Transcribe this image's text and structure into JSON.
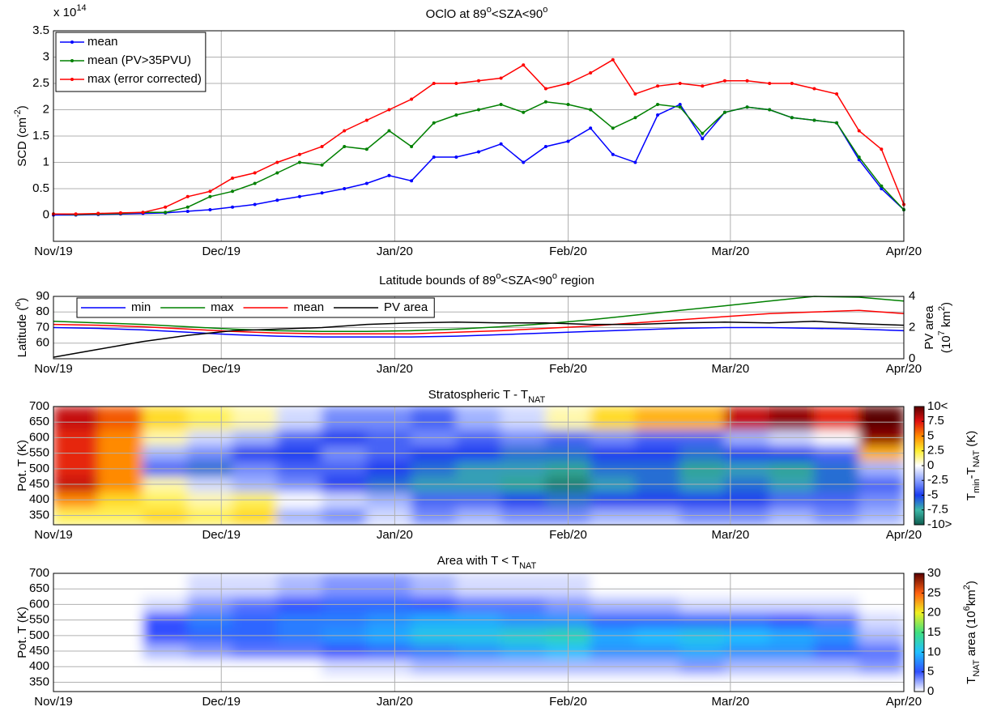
{
  "chart_data": [
    {
      "type": "line",
      "title": [
        "OClO at 89",
        {
          "sup": "o"
        },
        "<SZA<90",
        {
          "sup": "o"
        }
      ],
      "y_multiplier": [
        "x 10",
        {
          "sup": "14"
        }
      ],
      "ylabel": [
        "SCD (cm",
        {
          "sup": "-2"
        },
        ")"
      ],
      "x": [
        0,
        4,
        8,
        12,
        16,
        20,
        24,
        28,
        32,
        36,
        40,
        44,
        48,
        52,
        56,
        60,
        64,
        68,
        72,
        76,
        80,
        84,
        88,
        92,
        96,
        100,
        104,
        108,
        112,
        116,
        120,
        124,
        128,
        132,
        136,
        140,
        144,
        148,
        152
      ],
      "xlim": [
        0,
        152
      ],
      "xticks": [
        {
          "value": 0,
          "label": "Nov/19"
        },
        {
          "value": 30,
          "label": "Dec/19"
        },
        {
          "value": 61,
          "label": "Jan/20"
        },
        {
          "value": 92,
          "label": "Feb/20"
        },
        {
          "value": 121,
          "label": "Mar/20"
        },
        {
          "value": 152,
          "label": "Apr/20"
        }
      ],
      "ylim": [
        -0.5,
        3.5
      ],
      "yticks": [
        0,
        0.5,
        1,
        1.5,
        2,
        2.5,
        3,
        3.5
      ],
      "grid": true,
      "markers": true,
      "legend": "upper left",
      "series": [
        {
          "name": "mean",
          "color": "#0000ff",
          "values": [
            0,
            0,
            0.01,
            0.02,
            0.03,
            0.04,
            0.07,
            0.1,
            0.15,
            0.2,
            0.28,
            0.35,
            0.42,
            0.5,
            0.6,
            0.75,
            0.65,
            1.1,
            1.1,
            1.2,
            1.35,
            1.0,
            1.3,
            1.4,
            1.65,
            1.15,
            1.0,
            1.9,
            2.1,
            1.45,
            1.95,
            2.05,
            2.0,
            1.85,
            1.8,
            1.75,
            1.05,
            0.5,
            0.1
          ]
        },
        {
          "name": "mean (PV>35PVU)",
          "color": "#008000",
          "values": [
            0.02,
            0.01,
            0.02,
            0.03,
            0.05,
            0.05,
            0.15,
            0.35,
            0.45,
            0.6,
            0.8,
            1.0,
            0.95,
            1.3,
            1.25,
            1.6,
            1.3,
            1.75,
            1.9,
            2.0,
            2.1,
            1.95,
            2.15,
            2.1,
            2.0,
            1.65,
            1.85,
            2.1,
            2.05,
            1.55,
            1.95,
            2.05,
            2.0,
            1.85,
            1.8,
            1.75,
            1.1,
            0.55,
            0.1
          ]
        },
        {
          "name": "max (error corrected)",
          "color": "#ff0000",
          "values": [
            0.02,
            0.02,
            0.03,
            0.04,
            0.05,
            0.15,
            0.35,
            0.45,
            0.7,
            0.8,
            1.0,
            1.15,
            1.3,
            1.6,
            1.8,
            2.0,
            2.2,
            2.5,
            2.5,
            2.55,
            2.6,
            2.85,
            2.4,
            2.5,
            2.7,
            2.95,
            2.3,
            2.45,
            2.5,
            2.45,
            2.55,
            2.55,
            2.5,
            2.5,
            2.4,
            2.3,
            1.6,
            1.25,
            0.2
          ]
        }
      ]
    },
    {
      "type": "line",
      "title": [
        "Latitude bounds of 89",
        {
          "sup": "o"
        },
        "<SZA<90",
        {
          "sup": "o"
        },
        " region"
      ],
      "ylabel": [
        "Latitude (",
        {
          "sup": "o"
        },
        ")"
      ],
      "y2label": [
        "PV area",
        [
          "(10",
          {
            "sup": "7"
          },
          " km",
          {
            "sup": "2"
          },
          ")"
        ]
      ],
      "x": [
        0,
        8,
        16,
        24,
        32,
        40,
        48,
        56,
        64,
        72,
        80,
        88,
        96,
        104,
        112,
        120,
        128,
        136,
        144,
        152
      ],
      "xlim": [
        0,
        152
      ],
      "xticks": [
        {
          "value": 0,
          "label": "Nov/19"
        },
        {
          "value": 30,
          "label": "Dec/19"
        },
        {
          "value": 61,
          "label": "Jan/20"
        },
        {
          "value": 92,
          "label": "Feb/20"
        },
        {
          "value": 121,
          "label": "Mar/20"
        },
        {
          "value": 152,
          "label": "Apr/20"
        }
      ],
      "ylim": [
        50,
        90
      ],
      "yticks": [
        60,
        70,
        80,
        90
      ],
      "y2lim": [
        0,
        4
      ],
      "y2ticks": [
        0,
        2,
        4
      ],
      "grid": true,
      "markers": false,
      "legend": "upper left",
      "legend_orientation": "horizontal",
      "series": [
        {
          "name": "min",
          "color": "#0000ff",
          "values": [
            70,
            69.5,
            68.5,
            67,
            65.5,
            64.5,
            64,
            64,
            64,
            64.5,
            65.5,
            66.5,
            67.5,
            68.5,
            69.5,
            70,
            70,
            69.5,
            69,
            68
          ]
        },
        {
          "name": "max",
          "color": "#008000",
          "values": [
            74,
            73,
            72,
            70.5,
            69,
            68,
            67.5,
            67.5,
            68,
            69,
            70.5,
            72.5,
            75,
            78,
            81,
            84,
            87,
            90,
            89.5,
            87
          ]
        },
        {
          "name": "mean",
          "color": "#ff0000",
          "values": [
            72,
            71.5,
            70.5,
            69,
            67.5,
            66.5,
            66,
            66,
            66,
            67,
            68,
            69.5,
            71,
            73,
            75,
            77,
            79,
            80,
            81,
            79
          ]
        },
        {
          "name": "PV area",
          "color": "#000000",
          "axis": "y2",
          "values": [
            0.1,
            0.6,
            1.1,
            1.5,
            1.8,
            1.9,
            2.0,
            2.2,
            2.3,
            2.35,
            2.3,
            2.3,
            2.2,
            2.2,
            2.3,
            2.35,
            2.3,
            2.4,
            2.25,
            2.15
          ]
        }
      ]
    },
    {
      "type": "heatmap",
      "title": [
        "Stratospheric T - T",
        {
          "sub": "NAT"
        }
      ],
      "ylabel": "Pot. T (K)",
      "x_edges": [
        0,
        8,
        16,
        24,
        32,
        40,
        48,
        56,
        64,
        72,
        80,
        88,
        96,
        104,
        112,
        120,
        128,
        136,
        144,
        152
      ],
      "y_edges": [
        320,
        375,
        425,
        475,
        525,
        575,
        625,
        700
      ],
      "xlim": [
        0,
        152
      ],
      "xticks": [
        {
          "value": 0,
          "label": "Nov/19"
        },
        {
          "value": 30,
          "label": "Dec/19"
        },
        {
          "value": 61,
          "label": "Jan/20"
        },
        {
          "value": 92,
          "label": "Feb/20"
        },
        {
          "value": 121,
          "label": "Mar/20"
        },
        {
          "value": 152,
          "label": "Apr/20"
        }
      ],
      "ylim": [
        320,
        700
      ],
      "yticks": [
        350,
        400,
        450,
        500,
        550,
        600,
        650,
        700
      ],
      "grid": true,
      "values": [
        [
          2,
          5,
          8,
          7,
          7,
          7,
          8
        ],
        [
          2,
          3,
          5,
          5,
          5,
          5,
          6
        ],
        [
          3,
          2,
          1,
          -4,
          -2,
          1,
          3
        ],
        [
          2,
          1,
          -1,
          -6,
          -3,
          -1,
          2
        ],
        [
          3,
          2,
          -2,
          -3,
          -5,
          -2,
          1
        ],
        [
          -2,
          0,
          -3,
          -4,
          -5,
          -4,
          -1
        ],
        [
          -3,
          -1,
          -5,
          -4,
          -3,
          -5,
          -3
        ],
        [
          -1,
          -2,
          -6,
          -5,
          -4,
          -4,
          -3
        ],
        [
          -3,
          -4,
          -7,
          -6,
          -5,
          -3,
          -4
        ],
        [
          -2,
          -4,
          -7,
          -7,
          -5,
          -4,
          -2
        ],
        [
          -3,
          -5,
          -8,
          -7,
          -6,
          -3,
          -1
        ],
        [
          -3,
          -6,
          -9,
          -8,
          -6,
          -4,
          1
        ],
        [
          -2,
          -5,
          -7,
          -6,
          -5,
          -3,
          3
        ],
        [
          -2,
          -5,
          -6,
          -6,
          -5,
          -4,
          4
        ],
        [
          -3,
          -5,
          -7,
          -8,
          -6,
          -4,
          4
        ],
        [
          -3,
          -5,
          -6,
          -7,
          -5,
          -2,
          8
        ],
        [
          -2,
          -4,
          -7,
          -8,
          -5,
          -1,
          9
        ],
        [
          -3,
          -4,
          -6,
          -6,
          -4,
          0,
          7
        ],
        [
          -2,
          -3,
          -4,
          -2,
          4,
          9,
          10
        ]
      ],
      "zlim": [
        -10,
        10
      ],
      "zticks": [
        {
          "value": -10,
          "label": "-10>"
        },
        -7.5,
        -5,
        -2.5,
        0,
        2.5,
        5,
        7.5,
        {
          "value": 10,
          "label": "10<"
        }
      ],
      "colorbar_label": [
        "T",
        {
          "sub": "min"
        },
        "-T",
        {
          "sub": "NAT"
        },
        " (K)"
      ],
      "colors": [
        "#0d5c4e",
        "#3cb8a8",
        "#1a3cf0",
        "#8aa0ff",
        "#ffffff",
        "#ffee30",
        "#ff8a00",
        "#e01010",
        "#5a0000"
      ]
    },
    {
      "type": "heatmap",
      "title": [
        "Area with T < T",
        {
          "sub": "NAT"
        }
      ],
      "ylabel": "Pot. T (K)",
      "x_edges": [
        0,
        8,
        16,
        24,
        32,
        40,
        48,
        56,
        64,
        72,
        80,
        88,
        96,
        104,
        112,
        120,
        128,
        136,
        144,
        152
      ],
      "y_edges": [
        320,
        375,
        425,
        475,
        525,
        575,
        625,
        700
      ],
      "xlim": [
        0,
        152
      ],
      "xticks": [
        {
          "value": 0,
          "label": "Nov/19"
        },
        {
          "value": 30,
          "label": "Dec/19"
        },
        {
          "value": 61,
          "label": "Jan/20"
        },
        {
          "value": 92,
          "label": "Feb/20"
        },
        {
          "value": 121,
          "label": "Mar/20"
        },
        {
          "value": 152,
          "label": "Apr/20"
        }
      ],
      "ylim": [
        320,
        700
      ],
      "yticks": [
        350,
        400,
        450,
        500,
        550,
        600,
        650,
        700
      ],
      "grid": true,
      "values": [
        [
          0,
          0,
          0,
          0,
          0,
          0,
          0
        ],
        [
          0,
          0,
          0,
          0,
          0,
          0,
          0
        ],
        [
          0,
          0,
          2,
          5,
          5,
          1,
          0
        ],
        [
          0,
          0,
          3,
          6,
          7,
          3,
          1
        ],
        [
          0,
          0,
          4,
          6,
          6,
          4,
          1
        ],
        [
          0,
          0,
          4,
          7,
          7,
          5,
          2
        ],
        [
          0,
          1,
          5,
          8,
          7,
          6,
          3
        ],
        [
          0,
          1,
          6,
          9,
          8,
          6,
          3
        ],
        [
          0,
          2,
          7,
          11,
          9,
          5,
          2
        ],
        [
          0,
          2,
          8,
          11,
          9,
          4,
          1
        ],
        [
          0,
          2,
          9,
          12,
          8,
          4,
          1
        ],
        [
          0,
          2,
          10,
          13,
          8,
          3,
          1
        ],
        [
          0,
          2,
          8,
          9,
          6,
          2,
          0
        ],
        [
          0,
          2,
          8,
          10,
          6,
          2,
          0
        ],
        [
          0,
          3,
          9,
          11,
          6,
          1,
          0
        ],
        [
          0,
          2,
          8,
          10,
          6,
          1,
          0
        ],
        [
          0,
          2,
          8,
          9,
          5,
          1,
          0
        ],
        [
          0,
          2,
          6,
          8,
          4,
          1,
          0
        ],
        [
          0,
          3,
          4,
          2,
          1,
          0,
          0
        ]
      ],
      "zlim": [
        0,
        30
      ],
      "zticks": [
        0,
        5,
        10,
        15,
        20,
        25,
        30
      ],
      "colorbar_label": [
        "T",
        {
          "sub": "NAT"
        },
        " area (10",
        {
          "sup": "6"
        },
        "km",
        {
          "sup": "2"
        },
        ")"
      ],
      "colors": [
        "#ffffff",
        "#3050ff",
        "#20c0ff",
        "#40e080",
        "#f0f020",
        "#ff6010",
        "#5a0000"
      ]
    }
  ]
}
